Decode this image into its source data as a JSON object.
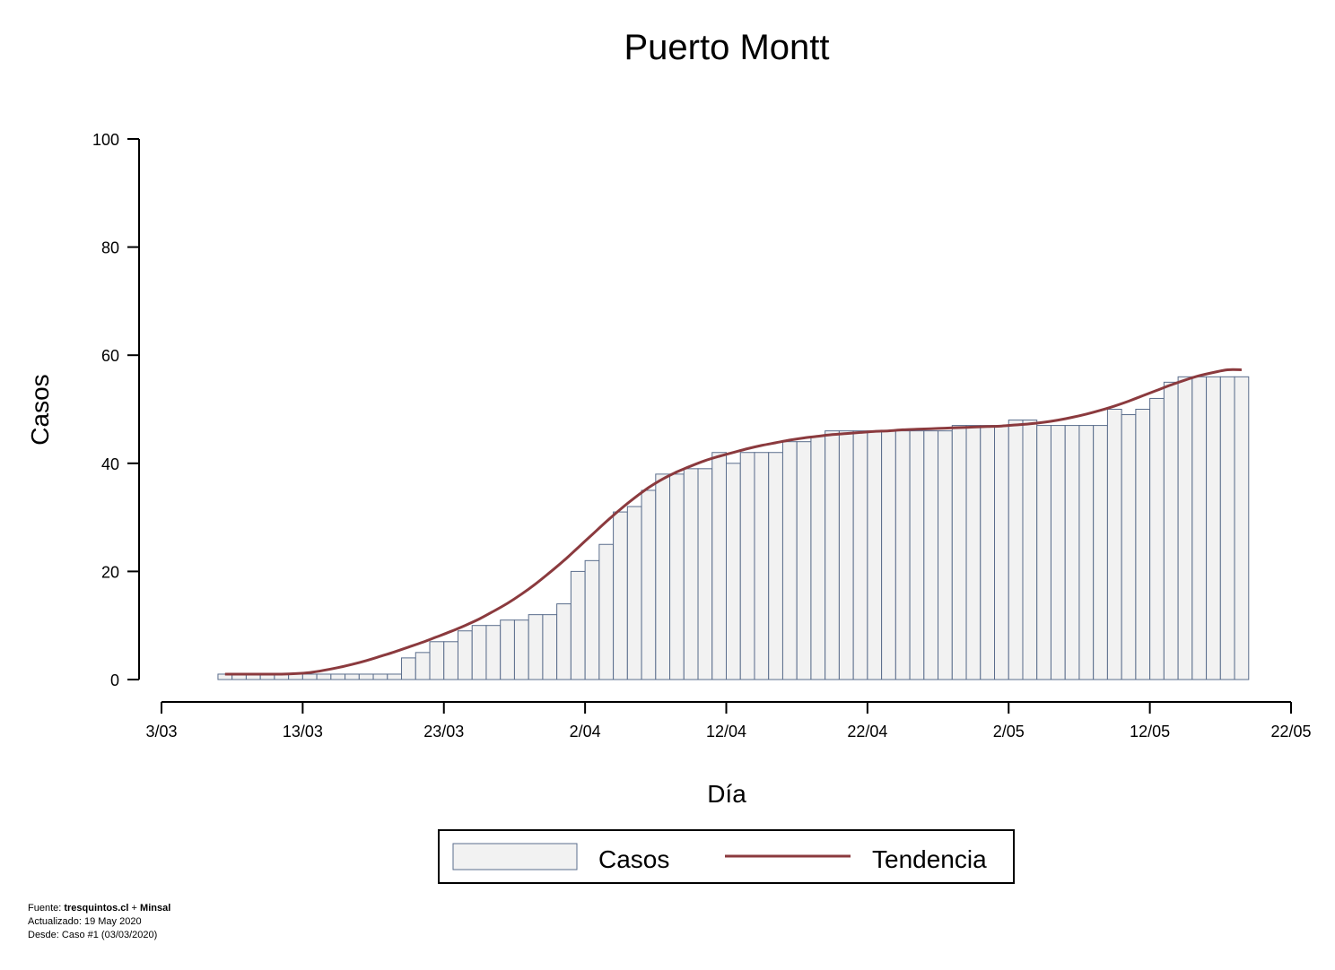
{
  "chart_data": {
    "type": "bar",
    "title": "Puerto Montt",
    "xlabel": "Día",
    "ylabel": "Casos",
    "ylim": [
      0,
      100
    ],
    "yticks": [
      "0",
      "20",
      "40",
      "60",
      "80",
      "100"
    ],
    "xticks": [
      "3/03",
      "13/03",
      "23/03",
      "2/04",
      "12/04",
      "22/04",
      "2/05",
      "12/05",
      "22/05"
    ],
    "x_start": "2020-03-07",
    "x_end": "2020-05-19",
    "series": [
      {
        "name": "Casos",
        "type": "bar",
        "values": [
          1,
          1,
          1,
          1,
          1,
          1,
          1,
          1,
          1,
          1,
          1,
          1,
          1,
          4,
          5,
          7,
          7,
          9,
          10,
          10,
          11,
          11,
          12,
          12,
          14,
          20,
          22,
          25,
          31,
          32,
          35,
          38,
          38,
          39,
          39,
          42,
          40,
          42,
          42,
          42,
          44,
          44,
          45,
          46,
          46,
          46,
          46,
          46,
          46,
          46,
          46,
          46,
          47,
          47,
          47,
          47,
          48,
          48,
          47,
          47,
          47,
          47,
          47,
          50,
          49,
          50,
          52,
          55,
          56,
          56,
          56,
          56,
          56
        ]
      },
      {
        "name": "Tendencia",
        "type": "line",
        "values": [
          1,
          1,
          1,
          1,
          1,
          1.1,
          1.3,
          1.7,
          2.2,
          2.8,
          3.5,
          4.3,
          5.1,
          6,
          6.9,
          7.9,
          8.9,
          10,
          11.2,
          12.6,
          14.1,
          15.8,
          17.7,
          19.8,
          22,
          24.4,
          26.8,
          29.2,
          31.5,
          33.6,
          35.5,
          37.1,
          38.4,
          39.5,
          40.5,
          41.3,
          42,
          42.7,
          43.3,
          43.8,
          44.3,
          44.7,
          45,
          45.3,
          45.5,
          45.7,
          45.9,
          46,
          46.2,
          46.3,
          46.4,
          46.5,
          46.6,
          46.7,
          46.8,
          46.9,
          47.1,
          47.3,
          47.6,
          48,
          48.5,
          49.1,
          49.8,
          50.6,
          51.5,
          52.5,
          53.5,
          54.5,
          55.4,
          56.2,
          56.8,
          57.3,
          57.3
        ]
      }
    ],
    "legend": {
      "position": "bottom",
      "labels": [
        "Casos",
        "Tendencia"
      ]
    },
    "grid": false,
    "colors": {
      "bar_fill": "#f2f2f2",
      "bar_edge": "#5a6d8c",
      "trend": "#8b3a3e"
    }
  },
  "footer": {
    "source_prefix": "Fuente: ",
    "source_name": "tresquintos.cl",
    "source_sep": " + ",
    "source_name2": "Minsal",
    "updated": "Actualizado: 19 May 2020",
    "since": "Desde: Caso #1  (03/03/2020)"
  }
}
